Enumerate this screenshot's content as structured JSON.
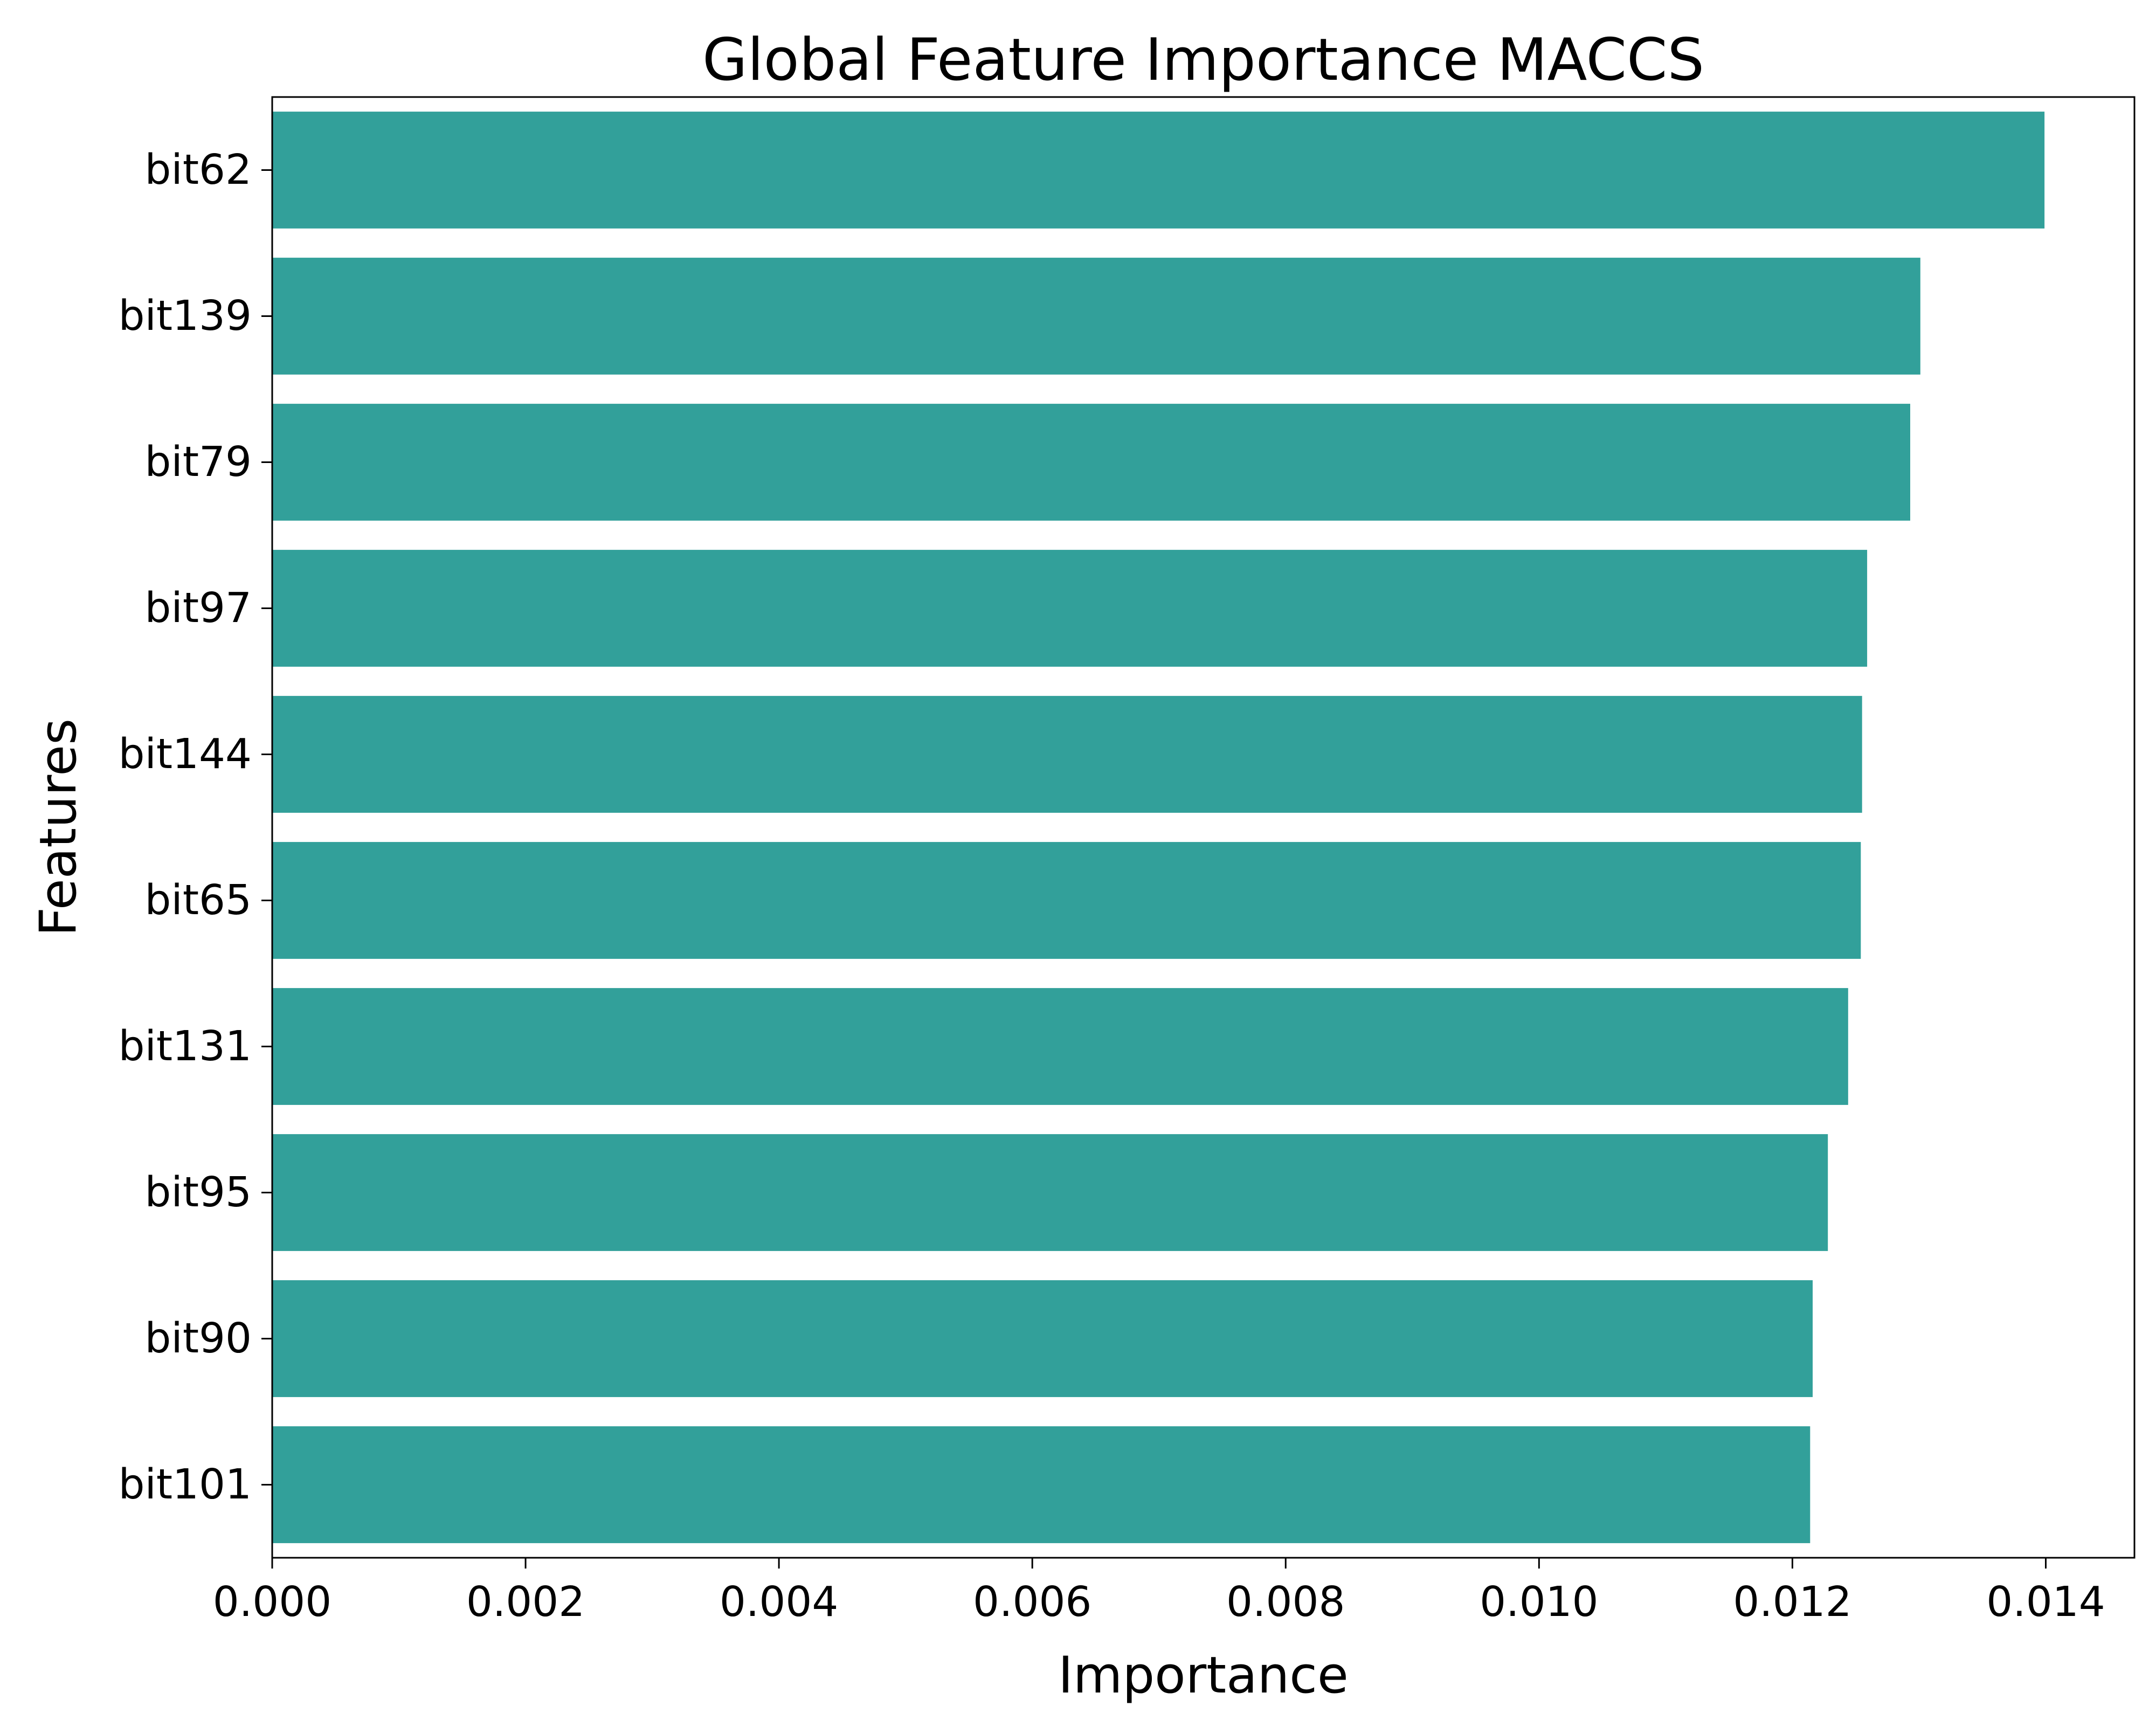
{
  "chart_data": {
    "type": "bar",
    "orientation": "horizontal",
    "title": "Global Feature Importance MACCS",
    "xlabel": "Importance",
    "ylabel": "Features",
    "categories": [
      "bit62",
      "bit139",
      "bit79",
      "bit97",
      "bit144",
      "bit65",
      "bit131",
      "bit95",
      "bit90",
      "bit101"
    ],
    "values": [
      0.01399,
      0.01301,
      0.01293,
      0.01259,
      0.01255,
      0.01254,
      0.01244,
      0.01228,
      0.01216,
      0.01214
    ],
    "xlim": [
      0,
      0.0147
    ],
    "xticks": [
      "0.000",
      "0.002",
      "0.004",
      "0.006",
      "0.008",
      "0.010",
      "0.012",
      "0.014"
    ],
    "xtick_values": [
      0,
      0.002,
      0.004,
      0.006,
      0.008,
      0.01,
      0.012,
      0.014
    ],
    "grid": false,
    "legend": "none",
    "colors": {
      "bar": "#32a09a",
      "axis": "#000000",
      "background": "#ffffff"
    }
  }
}
